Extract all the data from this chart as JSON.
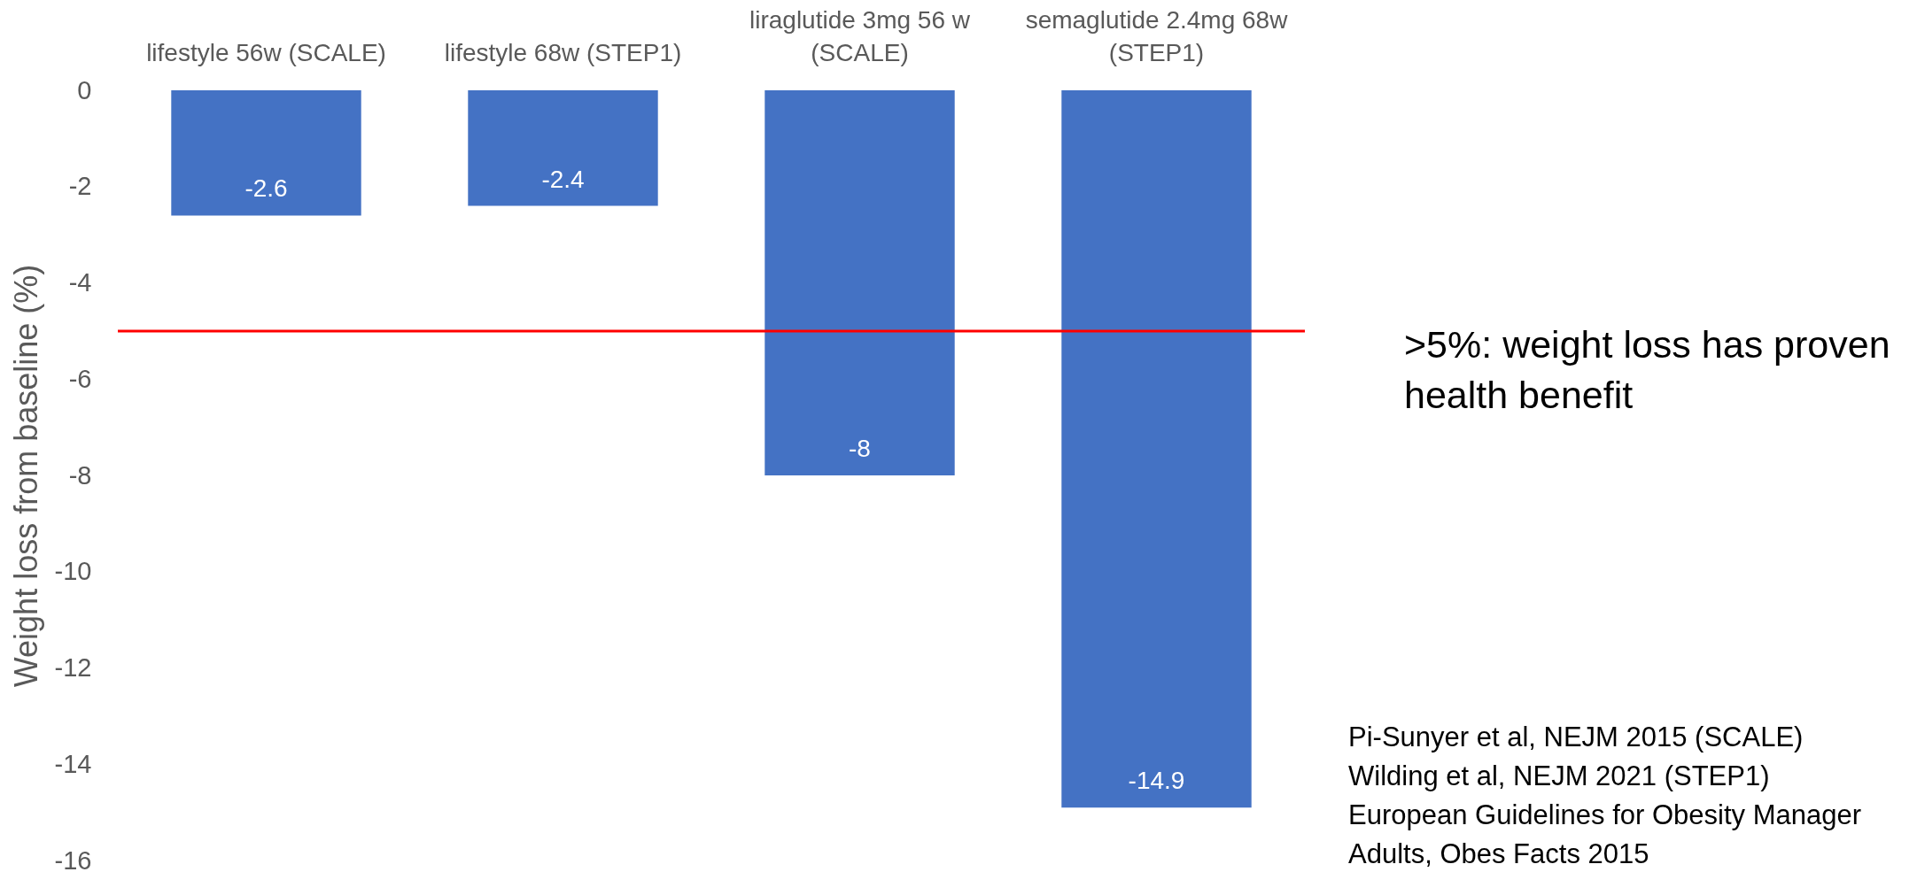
{
  "chart_data": {
    "type": "bar",
    "categories": [
      "lifestyle 56w (SCALE)",
      "lifestyle 68w (STEP1)",
      "liraglutide 3mg 56 w (SCALE)",
      "semaglutide 2.4mg 68w (STEP1)"
    ],
    "values": [
      -2.6,
      -2.4,
      -8,
      -14.9
    ],
    "color": "#4472c4",
    "data_labels": true,
    "ylabel": "Weight loss from baseline (%)",
    "ylim": [
      -16,
      0
    ],
    "yticks": [
      0,
      -2,
      -4,
      -6,
      -8,
      -10,
      -12,
      -14,
      -16
    ],
    "ref_lines": [
      {
        "axis": "y",
        "value": -5,
        "label": ">5%: weight loss has proven health benefit",
        "color": "#ff0000"
      }
    ],
    "annotations": [
      "Pi-Sunyer et al, NEJM 2015 (SCALE)",
      "Wilding et al, NEJM 2021 (STEP1)",
      "European Guidelines for Obesity Manager",
      "Adults, Obes Facts 2015"
    ]
  }
}
